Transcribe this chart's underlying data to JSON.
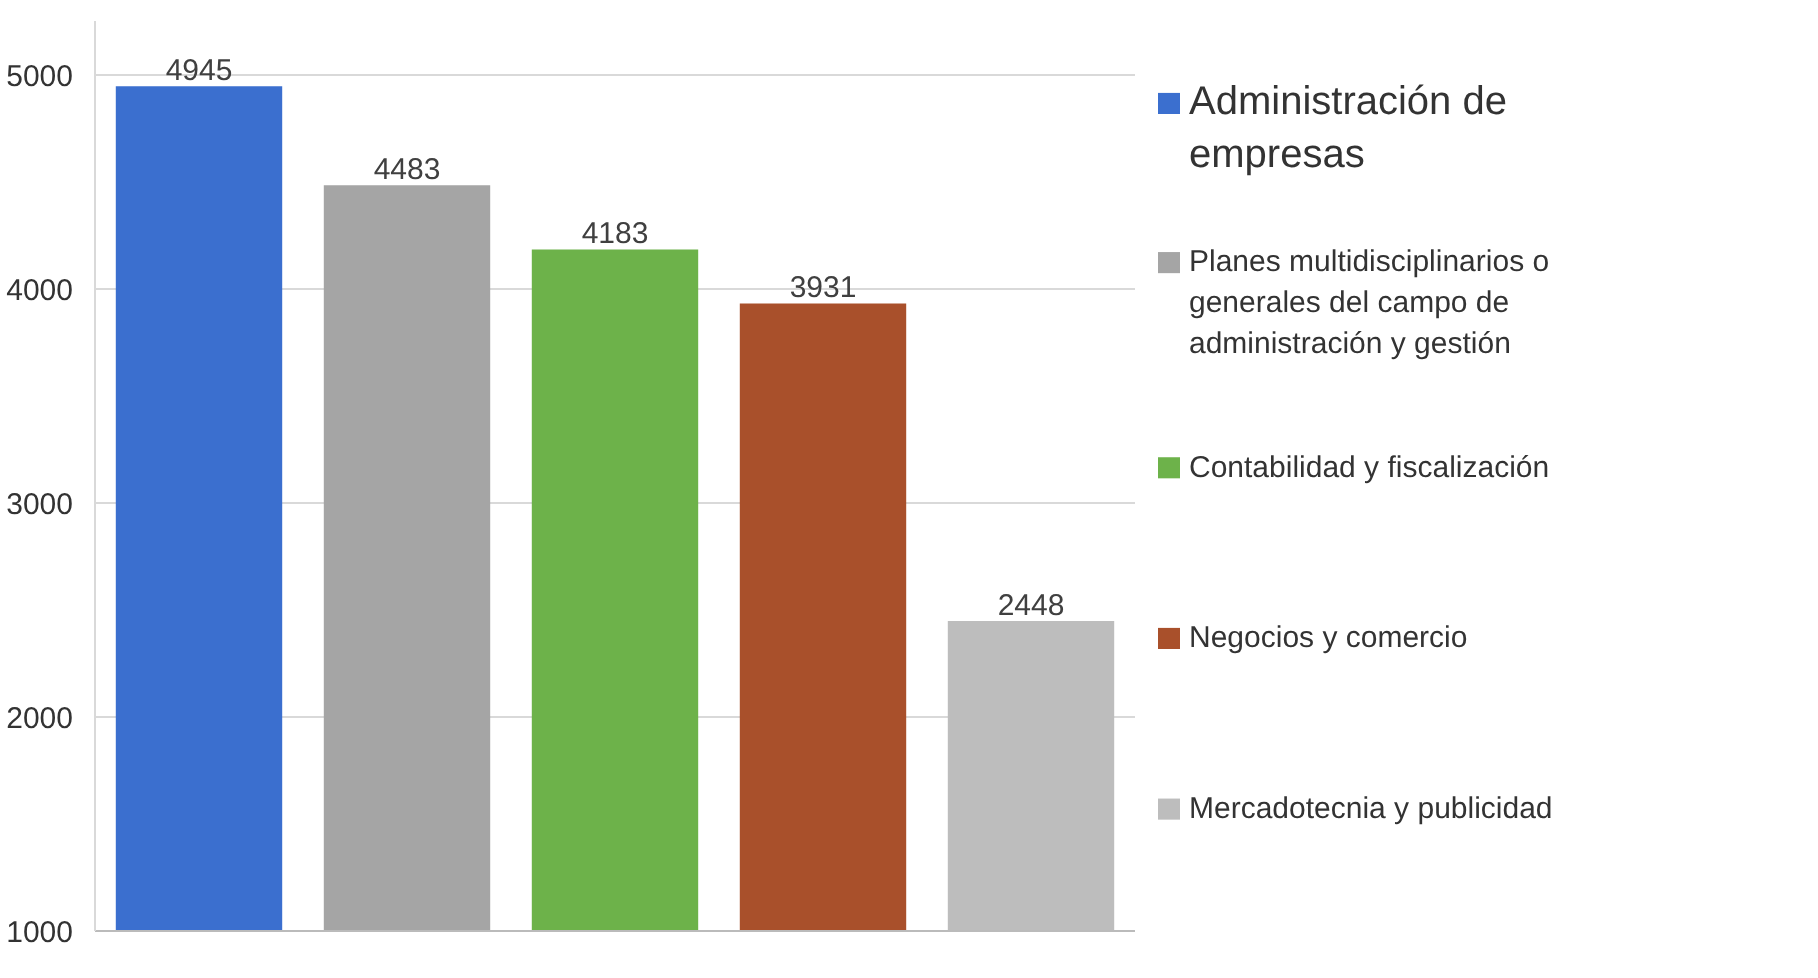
{
  "chart_data": {
    "type": "bar",
    "categories": [
      null,
      null,
      null,
      null,
      null
    ],
    "series": [
      {
        "name": "Administración de empresas",
        "color": "#3b6fcf",
        "values": [
          4945,
          null,
          null,
          null,
          null
        ]
      },
      {
        "name": "Planes multidisciplinarios o generales del campo de administración y gestión",
        "color": "#a5a5a5",
        "values": [
          null,
          4483,
          null,
          null,
          null
        ]
      },
      {
        "name": "Contabilidad y fiscalización",
        "color": "#6db24a",
        "values": [
          null,
          null,
          4183,
          null,
          null
        ]
      },
      {
        "name": "Negocios y comercio",
        "color": "#a9502b",
        "values": [
          null,
          null,
          null,
          3931,
          null
        ]
      },
      {
        "name": "Mercadotecnia y publicidad",
        "color": "#bdbdbd",
        "values": [
          null,
          null,
          null,
          null,
          2448
        ]
      }
    ],
    "ylim": [
      1000,
      5250
    ],
    "yticks": [
      1000,
      2000,
      3000,
      4000,
      5000
    ],
    "grid": "y",
    "legend": "right",
    "data_labels": true
  }
}
